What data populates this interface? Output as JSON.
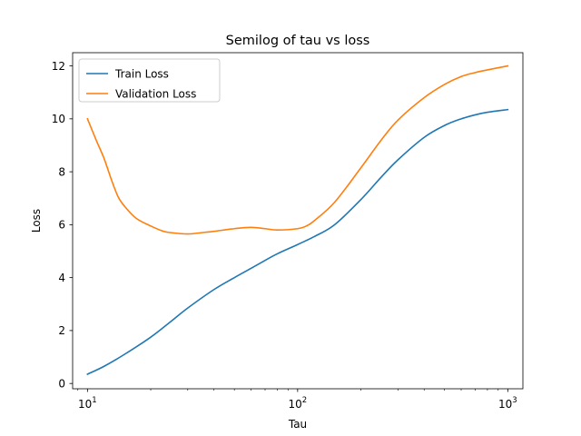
{
  "chart_data": {
    "type": "line",
    "title": "Semilog of tau vs loss",
    "xlabel": "Tau",
    "ylabel": "Loss",
    "xscale": "log",
    "xlim": [
      8.5,
      1180
    ],
    "ylim": [
      -0.2,
      12.5
    ],
    "xticks": [
      {
        "value": 10,
        "base": "10",
        "exp": "1"
      },
      {
        "value": 100,
        "base": "10",
        "exp": "2"
      },
      {
        "value": 1000,
        "base": "10",
        "exp": "3"
      }
    ],
    "yticks": [
      {
        "value": 0,
        "label": "0"
      },
      {
        "value": 2,
        "label": "2"
      },
      {
        "value": 4,
        "label": "4"
      },
      {
        "value": 6,
        "label": "6"
      },
      {
        "value": 8,
        "label": "8"
      },
      {
        "value": 10,
        "label": "10"
      },
      {
        "value": 12,
        "label": "12"
      }
    ],
    "grid": false,
    "legend_position": "upper-left",
    "series": [
      {
        "name": "Train Loss",
        "color": "#1f77b4",
        "x": [
          10,
          12,
          15,
          20,
          25,
          30,
          40,
          50,
          60,
          70,
          80,
          100,
          120,
          150,
          200,
          250,
          300,
          400,
          500,
          600,
          700,
          800,
          1000
        ],
        "y": [
          0.35,
          0.65,
          1.1,
          1.75,
          2.35,
          2.85,
          3.55,
          4.0,
          4.35,
          4.65,
          4.9,
          5.25,
          5.55,
          6.0,
          6.95,
          7.8,
          8.45,
          9.3,
          9.75,
          10.0,
          10.15,
          10.25,
          10.35
        ]
      },
      {
        "name": "Validation Loss",
        "color": "#ff7f0e",
        "x": [
          10,
          11,
          12,
          13,
          14,
          15,
          17,
          20,
          23,
          25,
          30,
          35,
          40,
          50,
          60,
          70,
          80,
          100,
          110,
          120,
          150,
          200,
          250,
          300,
          400,
          500,
          600,
          700,
          800,
          1000
        ],
        "y": [
          10.0,
          9.2,
          8.5,
          7.7,
          7.05,
          6.7,
          6.25,
          5.95,
          5.75,
          5.7,
          5.65,
          5.7,
          5.75,
          5.85,
          5.9,
          5.85,
          5.8,
          5.85,
          5.95,
          6.15,
          6.85,
          8.15,
          9.2,
          9.95,
          10.8,
          11.3,
          11.6,
          11.75,
          11.85,
          12.0
        ]
      }
    ]
  }
}
